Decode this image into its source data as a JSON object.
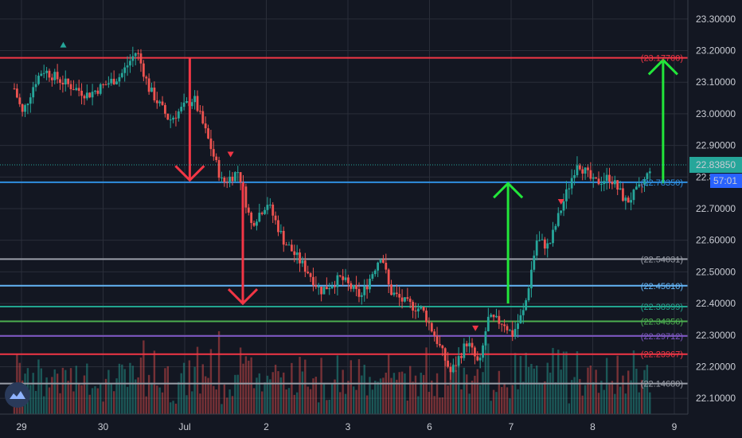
{
  "chart_data": {
    "type": "candlestick",
    "y_ticks": [
      "22.10000",
      "22.20000",
      "22.30000",
      "22.40000",
      "22.50000",
      "22.60000",
      "22.70000",
      "22.80000",
      "22.90000",
      "23.00000",
      "23.10000",
      "23.20000",
      "23.30000"
    ],
    "ylim": [
      22.05,
      23.36
    ],
    "x_ticks": [
      "29",
      "30",
      "Jul",
      "2",
      "3",
      "6",
      "7",
      "8",
      "9"
    ],
    "last_price": {
      "label": "22.83850",
      "value": 22.8385,
      "color": "#26a69a"
    },
    "countdown": {
      "label": "57:01",
      "color": "#2962ff"
    },
    "levels": [
      {
        "label": "(23.17700)",
        "value": 23.177,
        "color": "#f23645"
      },
      {
        "label": "(22.78350)",
        "value": 22.7835,
        "color": "#2f8fe0"
      },
      {
        "label": "(22.54031)",
        "value": 22.54031,
        "color": "#9a9ea8"
      },
      {
        "label": "(22.45610)",
        "value": 22.4561,
        "color": "#64b5f6"
      },
      {
        "label": "(22.38999)",
        "value": 22.38999,
        "color": "#22a58f"
      },
      {
        "label": "(22.34356)",
        "value": 22.34356,
        "color": "#4caf50"
      },
      {
        "label": "(22.29712)",
        "value": 22.29712,
        "color": "#7e57c2"
      },
      {
        "label": "(22.23967)",
        "value": 22.23967,
        "color": "#f23645"
      },
      {
        "label": "(22.14680)",
        "value": 22.1468,
        "color": "#9a9ea8"
      }
    ],
    "path_points": [
      {
        "t": 0,
        "p": 23.08
      },
      {
        "t": 0.1,
        "p": 23.0
      },
      {
        "t": 0.25,
        "p": 23.1
      },
      {
        "t": 0.35,
        "p": 23.14
      },
      {
        "t": 0.6,
        "p": 23.1
      },
      {
        "t": 0.9,
        "p": 23.06
      },
      {
        "t": 1.3,
        "p": 23.12
      },
      {
        "t": 1.5,
        "p": 23.2
      },
      {
        "t": 1.65,
        "p": 23.08
      },
      {
        "t": 1.9,
        "p": 22.98
      },
      {
        "t": 2.2,
        "p": 23.05
      },
      {
        "t": 2.4,
        "p": 22.9
      },
      {
        "t": 2.55,
        "p": 22.78
      },
      {
        "t": 2.75,
        "p": 22.82
      },
      {
        "t": 2.9,
        "p": 22.65
      },
      {
        "t": 3.1,
        "p": 22.72
      },
      {
        "t": 3.3,
        "p": 22.6
      },
      {
        "t": 3.6,
        "p": 22.5
      },
      {
        "t": 3.75,
        "p": 22.44
      },
      {
        "t": 4.0,
        "p": 22.48
      },
      {
        "t": 4.25,
        "p": 22.42
      },
      {
        "t": 4.5,
        "p": 22.56
      },
      {
        "t": 4.6,
        "p": 22.44
      },
      {
        "t": 4.8,
        "p": 22.4
      },
      {
        "t": 5.0,
        "p": 22.38
      },
      {
        "t": 5.15,
        "p": 22.3
      },
      {
        "t": 5.35,
        "p": 22.18
      },
      {
        "t": 5.55,
        "p": 22.28
      },
      {
        "t": 5.7,
        "p": 22.2
      },
      {
        "t": 5.8,
        "p": 22.35
      },
      {
        "t": 6.0,
        "p": 22.34
      },
      {
        "t": 6.1,
        "p": 22.3
      },
      {
        "t": 6.25,
        "p": 22.38
      },
      {
        "t": 6.4,
        "p": 22.6
      },
      {
        "t": 6.55,
        "p": 22.58
      },
      {
        "t": 6.7,
        "p": 22.7
      },
      {
        "t": 6.9,
        "p": 22.85
      },
      {
        "t": 7.1,
        "p": 22.78
      },
      {
        "t": 7.3,
        "p": 22.8
      },
      {
        "t": 7.5,
        "p": 22.72
      },
      {
        "t": 7.65,
        "p": 22.76
      },
      {
        "t": 7.75,
        "p": 22.8
      },
      {
        "t": 7.8,
        "p": 22.84
      }
    ],
    "arrows": [
      {
        "x_day": 2.15,
        "from": 23.175,
        "to": 22.79,
        "color": "#f23645"
      },
      {
        "x_day": 2.8,
        "from": 22.78,
        "to": 22.4,
        "color": "#f23645"
      },
      {
        "x_day": 6.05,
        "from": 22.4,
        "to": 22.78,
        "color": "#22e63a"
      },
      {
        "x_day": 7.95,
        "from": 22.78,
        "to": 23.17,
        "color": "#22e63a"
      }
    ],
    "markers": [
      {
        "x_day": 0.6,
        "value": 23.22,
        "dir": "up",
        "color": "#26a69a"
      },
      {
        "x_day": 2.65,
        "value": 22.87,
        "dir": "down",
        "color": "#f23645"
      },
      {
        "x_day": 5.65,
        "value": 22.32,
        "dir": "down",
        "color": "#f23645"
      },
      {
        "x_day": 6.7,
        "value": 22.72,
        "dir": "down",
        "color": "#f23645"
      }
    ],
    "colors": {
      "up": "#26a69a",
      "down": "#ef5350",
      "background": "#131722",
      "grid": "#2a2e39"
    }
  }
}
